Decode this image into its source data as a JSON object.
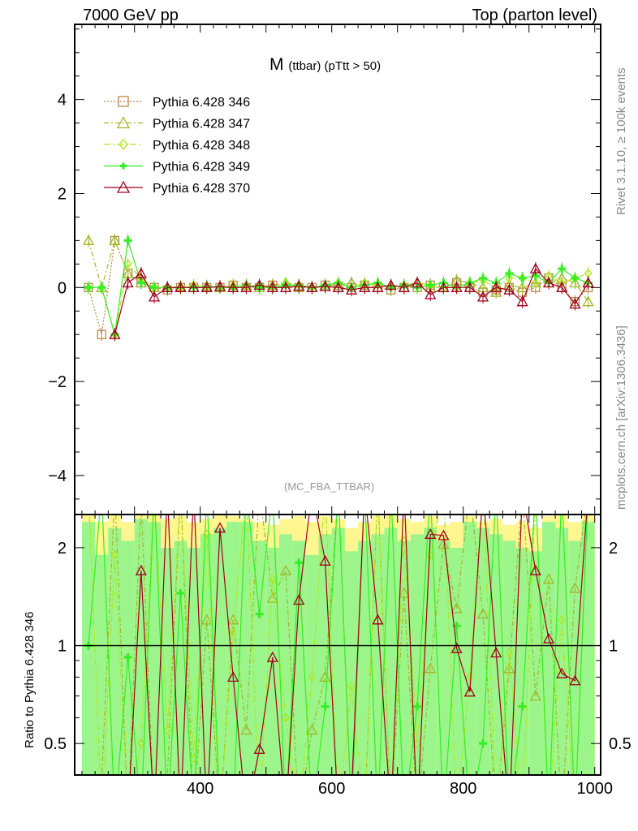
{
  "header": {
    "left": "7000 GeV pp",
    "right": "Top (parton level)"
  },
  "side": {
    "rivet": "Rivet 3.1.10, ≥ 100k events",
    "mcplots": "mcplots.cern.ch [arXiv:1306.3436]"
  },
  "analysis": "(MC_FBA_TTBAR)",
  "chart_data": {
    "type": "line",
    "title_main": "M",
    "title_sub": "(ttbar) (pTtt > 50)",
    "xlabel": "",
    "ylabel": "",
    "ratio_ylabel": "Ratio to Pythia 6.428 346",
    "xlim": [
      209,
      1009
    ],
    "ylim": [
      -4.83,
      5.6
    ],
    "ratio_ylim": [
      0.4,
      2.53
    ],
    "x_ticks": [
      "400",
      "600",
      "800",
      "1000"
    ],
    "y_ticks": [
      "4",
      "2",
      "0",
      "−2",
      "−4"
    ],
    "ratio_ticks": [
      "2",
      "1",
      "0.5"
    ],
    "x": [
      230,
      250,
      270,
      290,
      310,
      330,
      350,
      370,
      390,
      410,
      430,
      450,
      470,
      490,
      510,
      530,
      550,
      570,
      590,
      610,
      630,
      650,
      670,
      690,
      710,
      730,
      750,
      770,
      790,
      810,
      830,
      850,
      870,
      890,
      910,
      930,
      950,
      970,
      990
    ],
    "series": [
      {
        "name": "Pythia 6.428 346",
        "color": "#b88a4a",
        "marker": "square",
        "dash": "2,2",
        "values": [
          0,
          -1,
          1,
          0.3,
          0.1,
          0,
          -0.05,
          0,
          0,
          0,
          0,
          0.05,
          0,
          0,
          0.05,
          0,
          0,
          0,
          0.05,
          0,
          0,
          0.05,
          0,
          -0.05,
          0,
          0,
          0.05,
          0,
          0.1,
          0,
          -0.1,
          -0.05,
          0,
          -0.1,
          0,
          0.2,
          0,
          -0.3,
          0
        ],
        "ratio": [
          1,
          1,
          1,
          1,
          1,
          1,
          1,
          1,
          1,
          1,
          1,
          1,
          1,
          1,
          1,
          1,
          1,
          1,
          1,
          1,
          1,
          1,
          1,
          1,
          1,
          1,
          1,
          1,
          1,
          1,
          1,
          1,
          1,
          1,
          1,
          1,
          1,
          1,
          1
        ]
      },
      {
        "name": "Pythia 6.428 347",
        "color": "#a3b52a",
        "marker": "triangle",
        "dash": "6,3,2,3",
        "values": [
          1,
          0,
          1,
          0.3,
          0.1,
          0,
          0,
          0.02,
          0,
          0.03,
          0,
          0,
          0.05,
          0,
          0.05,
          0.1,
          0,
          0,
          0.05,
          0.05,
          0.1,
          0,
          0,
          0.05,
          0,
          0.1,
          0,
          0,
          0.15,
          0.1,
          0,
          -0.1,
          0.05,
          0,
          0.1,
          0.1,
          0.2,
          0.1,
          -0.3
        ],
        "ratio": [
          0.3,
          0.38,
          3,
          0.3,
          2.8,
          0.3,
          0.4,
          3,
          0.3,
          1.2,
          0.3,
          1.2,
          0.55,
          3,
          1.4,
          1.7,
          0.3,
          0.55,
          0.8,
          3,
          0.3,
          0.3,
          3,
          0.3,
          1.45,
          0.3,
          0.85,
          2.05,
          1.3,
          3,
          1.25,
          0.3,
          0.85,
          3,
          0.7,
          1.6,
          0.3,
          1.5,
          3
        ]
      },
      {
        "name": "Pythia 6.428 348",
        "color": "#aee61e",
        "marker": "diamond",
        "dash": "8,3,2,3",
        "values": [
          0,
          0,
          -1,
          0.5,
          0.2,
          0,
          0,
          0,
          0.05,
          0,
          0,
          0.05,
          0,
          0.05,
          0,
          0.1,
          0.05,
          0,
          0.05,
          0.1,
          0,
          0.1,
          0.05,
          0,
          0.05,
          0.1,
          0.05,
          0,
          0,
          0.1,
          0.15,
          0,
          0.2,
          0.2,
          0.1,
          0.25,
          0.1,
          0.2,
          0.3
        ],
        "ratio": [
          3,
          0.3,
          1.9,
          0.3,
          0.5,
          3,
          0.55,
          3,
          0.45,
          2.2,
          0.3,
          1.1,
          3,
          0.3,
          1.6,
          0.6,
          0.3,
          0.8,
          3,
          0.3,
          0.75,
          0.3,
          3,
          0.3,
          2.1,
          0.5,
          1.9,
          3,
          0.3,
          0.8,
          3,
          0.3,
          0.95,
          0.3,
          3,
          0.3,
          1.2,
          0.3,
          3
        ]
      },
      {
        "name": "Pythia 6.428 349",
        "color": "#33ee22",
        "marker": "plus",
        "dash": "",
        "values": [
          0,
          0,
          -1,
          1,
          0.1,
          0,
          0,
          0,
          0,
          0.02,
          0,
          0,
          0.05,
          0,
          0,
          0.05,
          0.05,
          0,
          0.05,
          0.1,
          0,
          0.05,
          0.1,
          0,
          0.05,
          0,
          0.05,
          0.1,
          0,
          0.1,
          0.2,
          0.1,
          0.3,
          0.2,
          0.25,
          0.1,
          0.4,
          0.2,
          0.1
        ],
        "ratio": [
          1,
          3,
          0.3,
          0.92,
          0.3,
          3,
          0.3,
          1.45,
          0.3,
          3,
          0.3,
          0.3,
          3,
          1.25,
          3,
          0.3,
          1.8,
          0.3,
          0.65,
          3,
          0.3,
          3,
          0.3,
          3,
          0.3,
          0.65,
          3,
          0.3,
          1.15,
          0.3,
          0.5,
          3,
          0.3,
          0.65,
          3,
          0.3,
          3,
          0.3,
          3
        ]
      },
      {
        "name": "Pythia 6.428 370",
        "color": "#a0001c",
        "marker": "triangle",
        "dash": "",
        "values": [
          null,
          null,
          -1,
          0.1,
          0.3,
          -0.2,
          0,
          0,
          0,
          0,
          0.02,
          0,
          0,
          0.05,
          0,
          0,
          0.03,
          0,
          0.02,
          0,
          -0.05,
          0,
          0,
          0.05,
          0,
          0.1,
          -0.15,
          0,
          0,
          0,
          -0.2,
          0,
          -0.05,
          -0.3,
          0.4,
          0.1,
          0,
          -0.35,
          0.1
        ],
        "ratio": [
          null,
          null,
          0.3,
          0.3,
          1.7,
          0.3,
          3,
          0.3,
          3,
          0.3,
          2.3,
          0.8,
          0.3,
          0.48,
          0.92,
          0.3,
          1.38,
          3,
          1.82,
          0.3,
          0.35,
          3,
          1.2,
          0.3,
          3,
          0.3,
          2.2,
          2.18,
          0.98,
          0.72,
          3,
          0.95,
          0.3,
          3,
          1.7,
          1.05,
          0.82,
          0.78,
          3
        ]
      }
    ],
    "ratio_band_green_hi": [
      2.4,
      1.9,
      2.3,
      2.1,
      2.45,
      2.4,
      2.0,
      2.1,
      2.0,
      2.2,
      2.3,
      2.4,
      2.4,
      2.1,
      2.0,
      2.2,
      2.1,
      1.9,
      2.2,
      2.3,
      1.95,
      2.1,
      2.2,
      2.3,
      2.1,
      2.2,
      2.3,
      2.1,
      2.0,
      2.4,
      2.3,
      2.2,
      2.1,
      2.0,
      1.95,
      2.4,
      2.3,
      2.1,
      2.4
    ],
    "ratio_band_yellow_hi": [
      2.53,
      2.4,
      2.53,
      2.4,
      2.53,
      2.53,
      2.45,
      2.5,
      2.4,
      2.45,
      2.53,
      2.5,
      2.45,
      2.4,
      2.35,
      2.45,
      2.5,
      2.4,
      2.5,
      2.45,
      2.3,
      2.4,
      2.5,
      2.53,
      2.45,
      2.4,
      2.5,
      2.35,
      2.4,
      2.5,
      2.4,
      2.45,
      2.35,
      2.4,
      2.3,
      2.5,
      2.53,
      2.4,
      2.53
    ]
  }
}
